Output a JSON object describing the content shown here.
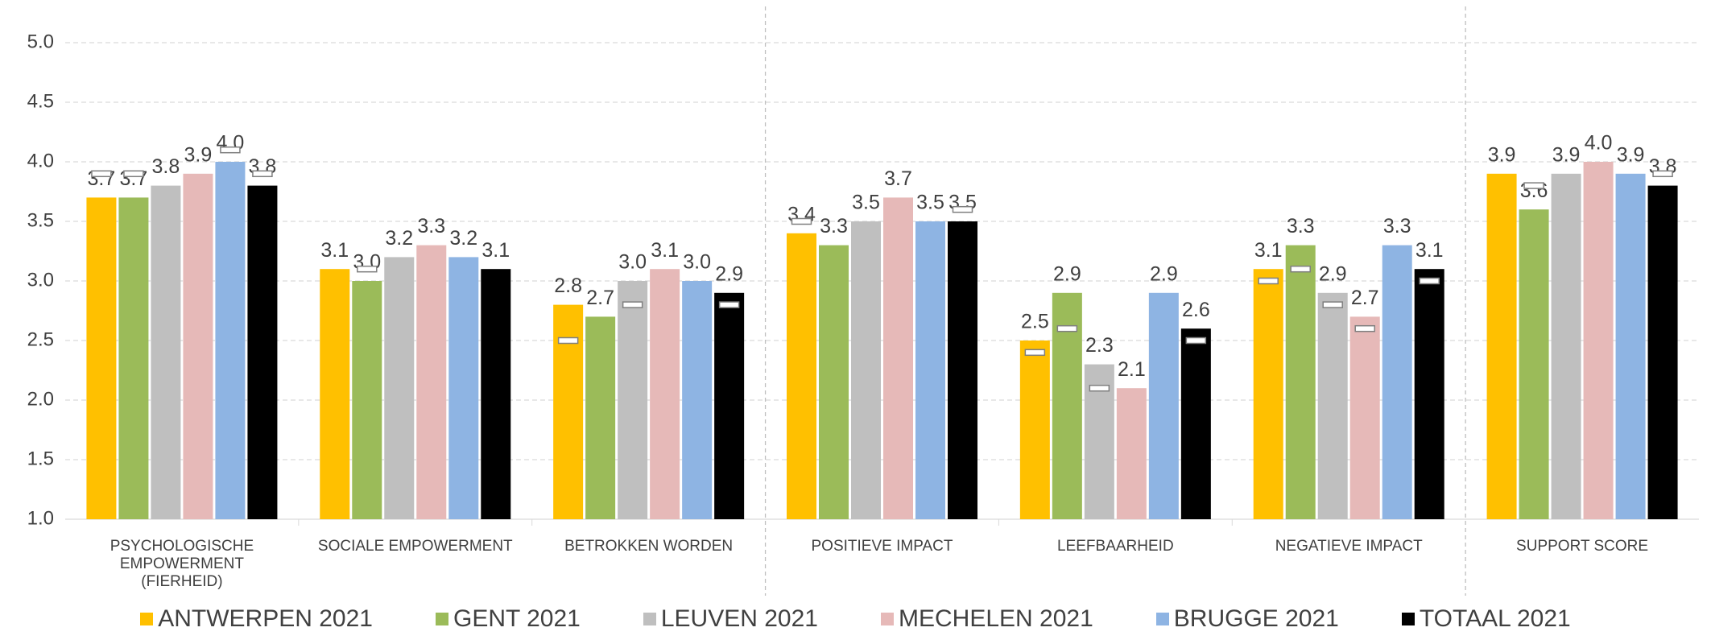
{
  "chart_data": {
    "type": "bar",
    "categories": [
      "PSYCHOLOGISCHE EMPOWERMENT (FIERHEID)",
      "SOCIALE EMPOWERMENT",
      "BETROKKEN WORDEN",
      "POSITIEVE IMPACT",
      "LEEFBAARHEID",
      "NEGATIEVE IMPACT",
      "SUPPORT SCORE"
    ],
    "series": [
      {
        "name": "ANTWERPEN 2021",
        "color": "#FFC000",
        "values": [
          3.7,
          3.1,
          2.8,
          3.4,
          2.5,
          3.1,
          3.9
        ],
        "value_labels": [
          "3.7",
          "3.1",
          "2.8",
          "3.4",
          "2.5",
          "3.1",
          "3.9"
        ],
        "markers": [
          3.9,
          null,
          2.5,
          3.5,
          2.4,
          3.0,
          null
        ]
      },
      {
        "name": "GENT 2021",
        "color": "#9BBB59",
        "values": [
          3.7,
          3.0,
          2.7,
          3.3,
          2.9,
          3.3,
          3.6
        ],
        "value_labels": [
          "3.7",
          "3.0",
          "2.7",
          "3.3",
          "2.9",
          "3.3",
          "3.6"
        ],
        "markers": [
          3.9,
          3.1,
          null,
          null,
          2.6,
          3.1,
          3.8
        ]
      },
      {
        "name": "LEUVEN 2021",
        "color": "#BFBFBF",
        "values": [
          3.8,
          3.2,
          3.0,
          3.5,
          2.3,
          2.9,
          3.9
        ],
        "value_labels": [
          "3.8",
          "3.2",
          "3.0",
          "3.5",
          "2.3",
          "2.9",
          "3.9"
        ],
        "markers": [
          null,
          null,
          2.8,
          null,
          2.1,
          2.8,
          null
        ]
      },
      {
        "name": "MECHELEN 2021",
        "color": "#E6B9B8",
        "values": [
          3.9,
          3.3,
          3.1,
          3.7,
          2.1,
          2.7,
          4.0
        ],
        "value_labels": [
          "3.9",
          "3.3",
          "3.1",
          "3.7",
          "2.1",
          "2.7",
          "4.0"
        ],
        "markers": [
          null,
          null,
          null,
          null,
          null,
          2.6,
          null
        ]
      },
      {
        "name": "BRUGGE 2021",
        "color": "#8EB4E3",
        "values": [
          4.0,
          3.2,
          3.0,
          3.5,
          2.9,
          3.3,
          3.9
        ],
        "value_labels": [
          "4.0",
          "3.2",
          "3.0",
          "3.5",
          "2.9",
          "3.3",
          "3.9"
        ],
        "markers": [
          4.1,
          null,
          null,
          null,
          null,
          null,
          null
        ]
      },
      {
        "name": "TOTAAL 2021",
        "color": "#000000",
        "values": [
          3.8,
          3.1,
          2.9,
          3.5,
          2.6,
          3.1,
          3.8
        ],
        "value_labels": [
          "3.8",
          "3.1",
          "2.9",
          "3.5",
          "2.6",
          "3.1",
          "3.8"
        ],
        "markers": [
          3.9,
          null,
          2.8,
          3.6,
          2.5,
          3.0,
          3.9
        ]
      }
    ],
    "ylim": [
      1,
      5
    ],
    "yticks": [
      {
        "value": 1,
        "label": "1.0"
      },
      {
        "value": 1.5,
        "label": "1.5"
      },
      {
        "value": 2,
        "label": "2.0"
      },
      {
        "value": 2.5,
        "label": "2.5"
      },
      {
        "value": 3,
        "label": "3.0"
      },
      {
        "value": 3.5,
        "label": "3.5"
      },
      {
        "value": 4,
        "label": "4.0"
      },
      {
        "value": 4.5,
        "label": "4.5"
      },
      {
        "value": 5,
        "label": "5.0"
      }
    ],
    "grid": true,
    "legend": "bottom"
  }
}
